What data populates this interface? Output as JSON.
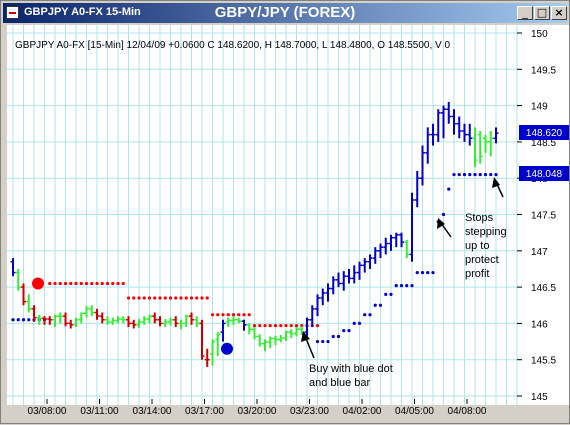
{
  "window": {
    "title": "GBPY/JPY (FOREX)",
    "subtitle": "GBPJPY A0-FX 15-Min",
    "minimize_icon": "minimize-icon",
    "maximize_icon": "maximize-icon",
    "close_icon": "close-icon"
  },
  "chart_data": {
    "type": "ohlc-bar",
    "header": "GBPJPY A0-FX [15-Min] 12/04/09 +0.0600 C 148.6200, H 148.7000, L 148.4800, O 148.5500, V 0",
    "ylim": [
      145,
      150
    ],
    "y_ticks": [
      "150",
      "149.5",
      "149",
      "148.5",
      "148",
      "147.5",
      "147",
      "146.5",
      "146",
      "145.5",
      "145"
    ],
    "y_tick_values": [
      150,
      149.5,
      149,
      148.5,
      148,
      147.5,
      147,
      146.5,
      146,
      145.5,
      145
    ],
    "x_ticks": [
      "03/08:00",
      "03/11:00",
      "03/14:00",
      "03/17:00",
      "03/20:00",
      "03/23:00",
      "04/02:00",
      "04/05:00",
      "04/08:00"
    ],
    "last_price_label": "148.620",
    "stop_label": "148.048",
    "grid": true,
    "colors": {
      "bull_bar": "#0000cc",
      "bear_bar": "#cc0000",
      "neutral_bar": "#33ee33",
      "stop_dots_short": "#ff0000",
      "stop_dots_long": "#0000cc",
      "grid": "#aee6ee",
      "label_bg": "#0000cc"
    },
    "series": [
      {
        "name": "bars",
        "open": [
          146.85,
          146.7,
          146.5,
          146.3,
          146.2,
          146.08,
          146.07,
          146.06,
          146.05,
          146.1,
          146.1,
          146.0,
          145.98,
          146.05,
          146.14,
          146.2,
          146.15,
          146.1,
          146.05,
          146.02,
          146.04,
          146.06,
          146.05,
          146.0,
          145.98,
          146.02,
          146.06,
          146.1,
          146.05,
          146.0,
          146.02,
          146.05,
          146.0,
          146.0,
          146.1,
          146.05,
          146.0,
          145.5,
          145.58,
          145.78,
          145.88,
          146.02,
          146.04,
          146.05,
          146.03,
          145.98,
          145.92,
          145.82,
          145.72,
          145.74,
          145.79,
          145.78,
          145.8,
          145.88,
          145.86,
          145.92,
          145.88,
          146.05,
          146.2,
          146.35,
          146.42,
          146.48,
          146.6,
          146.55,
          146.65,
          146.62,
          146.7,
          146.8,
          146.85,
          146.9,
          147.0,
          147.05,
          147.1,
          147.18,
          147.22,
          147.12,
          146.95,
          147.7,
          148.0,
          148.35,
          148.6,
          148.6,
          148.9,
          148.95,
          148.85,
          148.75,
          148.65,
          148.6,
          148.55,
          148.6,
          148.55,
          148.5,
          148.55
        ],
        "high": [
          146.9,
          146.75,
          146.55,
          146.4,
          146.25,
          146.12,
          146.1,
          146.1,
          146.12,
          146.15,
          146.15,
          146.05,
          146.08,
          146.15,
          146.24,
          146.25,
          146.2,
          146.15,
          146.1,
          146.08,
          146.1,
          146.1,
          146.1,
          146.05,
          146.06,
          146.1,
          146.12,
          146.15,
          146.1,
          146.06,
          146.08,
          146.1,
          146.05,
          146.12,
          146.15,
          146.1,
          146.05,
          145.65,
          145.78,
          145.88,
          146.05,
          146.08,
          146.1,
          146.08,
          146.05,
          146.0,
          145.95,
          145.85,
          145.78,
          145.82,
          145.83,
          145.84,
          145.9,
          145.92,
          145.95,
          145.96,
          146.08,
          146.25,
          146.4,
          146.48,
          146.55,
          146.65,
          146.7,
          146.72,
          146.75,
          146.8,
          146.85,
          146.9,
          146.95,
          147.05,
          147.1,
          147.18,
          147.22,
          147.25,
          147.25,
          147.15,
          147.8,
          148.1,
          148.45,
          148.7,
          148.75,
          148.95,
          149.0,
          149.05,
          148.95,
          148.85,
          148.75,
          148.75,
          148.7,
          148.65,
          148.6,
          148.65,
          148.7
        ],
        "low": [
          146.65,
          146.45,
          146.25,
          146.15,
          146.02,
          145.98,
          145.98,
          145.98,
          145.95,
          146.0,
          145.96,
          145.93,
          145.95,
          146.0,
          146.08,
          146.1,
          146.05,
          146.0,
          145.98,
          145.98,
          146.0,
          146.0,
          145.95,
          145.93,
          145.94,
          145.98,
          146.0,
          146.0,
          145.96,
          145.95,
          145.97,
          145.95,
          145.92,
          145.95,
          145.98,
          145.95,
          145.5,
          145.4,
          145.42,
          145.55,
          145.75,
          145.95,
          145.98,
          146.0,
          145.9,
          145.85,
          145.78,
          145.68,
          145.62,
          145.66,
          145.7,
          145.74,
          145.76,
          145.8,
          145.82,
          145.84,
          145.82,
          145.95,
          146.1,
          146.25,
          146.3,
          146.4,
          146.5,
          146.45,
          146.55,
          146.55,
          146.6,
          146.7,
          146.75,
          146.82,
          146.9,
          146.95,
          147.0,
          147.05,
          147.05,
          146.9,
          146.85,
          147.6,
          147.9,
          148.2,
          148.45,
          148.5,
          148.55,
          148.75,
          148.6,
          148.55,
          148.5,
          148.45,
          148.15,
          148.2,
          148.35,
          148.3,
          148.48
        ],
        "close": [
          146.7,
          146.5,
          146.3,
          146.2,
          146.08,
          146.07,
          146.06,
          146.05,
          146.1,
          146.1,
          146.0,
          145.98,
          146.05,
          146.14,
          146.2,
          146.15,
          146.1,
          146.05,
          146.02,
          146.04,
          146.06,
          146.05,
          146.0,
          145.98,
          146.02,
          146.06,
          146.1,
          146.05,
          146.0,
          146.02,
          146.05,
          146.0,
          146.0,
          146.1,
          146.05,
          146.0,
          145.55,
          145.5,
          145.75,
          145.85,
          146.0,
          146.04,
          146.05,
          146.03,
          145.98,
          145.92,
          145.82,
          145.72,
          145.74,
          145.79,
          145.78,
          145.8,
          145.88,
          145.86,
          145.92,
          145.88,
          146.05,
          146.2,
          146.35,
          146.42,
          146.48,
          146.6,
          146.55,
          146.65,
          146.62,
          146.7,
          146.8,
          146.85,
          146.9,
          147.0,
          147.05,
          147.1,
          147.18,
          147.22,
          147.12,
          146.95,
          147.7,
          148.0,
          148.35,
          148.6,
          148.6,
          148.9,
          148.95,
          148.85,
          148.75,
          148.65,
          148.6,
          148.55,
          148.25,
          148.3,
          148.5,
          148.55,
          148.62
        ],
        "color": [
          "B",
          "G",
          "R",
          "G",
          "R",
          "G",
          "R",
          "R",
          "G",
          "G",
          "R",
          "R",
          "G",
          "G",
          "G",
          "G",
          "R",
          "R",
          "G",
          "G",
          "G",
          "G",
          "R",
          "R",
          "G",
          "G",
          "G",
          "R",
          "R",
          "G",
          "G",
          "R",
          "G",
          "G",
          "R",
          "G",
          "R",
          "R",
          "G",
          "G",
          "B",
          "G",
          "G",
          "G",
          "B",
          "G",
          "G",
          "G",
          "G",
          "G",
          "G",
          "G",
          "G",
          "G",
          "G",
          "G",
          "B",
          "B",
          "B",
          "B",
          "B",
          "B",
          "B",
          "B",
          "B",
          "B",
          "B",
          "B",
          "B",
          "B",
          "B",
          "B",
          "B",
          "B",
          "B",
          "G",
          "B",
          "B",
          "B",
          "B",
          "B",
          "B",
          "B",
          "B",
          "B",
          "B",
          "B",
          "B",
          "G",
          "G",
          "G",
          "G",
          "B"
        ]
      },
      {
        "name": "short-stops",
        "points": [
          [
            7,
            146.55
          ],
          [
            8,
            146.55
          ],
          [
            9,
            146.55
          ],
          [
            10,
            146.55
          ],
          [
            11,
            146.55
          ],
          [
            12,
            146.55
          ],
          [
            13,
            146.55
          ],
          [
            14,
            146.55
          ],
          [
            15,
            146.55
          ],
          [
            16,
            146.55
          ],
          [
            17,
            146.55
          ],
          [
            18,
            146.55
          ],
          [
            19,
            146.55
          ],
          [
            20,
            146.55
          ],
          [
            21,
            146.55
          ],
          [
            22,
            146.35
          ],
          [
            23,
            146.35
          ],
          [
            24,
            146.35
          ],
          [
            25,
            146.35
          ],
          [
            26,
            146.35
          ],
          [
            27,
            146.35
          ],
          [
            28,
            146.35
          ],
          [
            29,
            146.35
          ],
          [
            30,
            146.35
          ],
          [
            31,
            146.35
          ],
          [
            32,
            146.35
          ],
          [
            33,
            146.35
          ],
          [
            34,
            146.35
          ],
          [
            35,
            146.35
          ],
          [
            36,
            146.35
          ],
          [
            37,
            146.35
          ],
          [
            38,
            146.12
          ],
          [
            39,
            146.12
          ],
          [
            40,
            146.12
          ],
          [
            41,
            146.12
          ],
          [
            42,
            146.12
          ],
          [
            43,
            146.12
          ],
          [
            44,
            146.12
          ],
          [
            45,
            146.12
          ],
          [
            46,
            145.97
          ],
          [
            47,
            145.97
          ],
          [
            48,
            145.97
          ],
          [
            49,
            145.97
          ],
          [
            50,
            145.97
          ],
          [
            51,
            145.97
          ],
          [
            52,
            145.97
          ],
          [
            53,
            145.97
          ],
          [
            54,
            145.97
          ],
          [
            55,
            145.97
          ],
          [
            56,
            145.97
          ],
          [
            57,
            145.97
          ],
          [
            58,
            145.97
          ]
        ]
      },
      {
        "name": "long-stops",
        "points": [
          [
            0,
            146.05
          ],
          [
            1,
            146.05
          ],
          [
            2,
            146.05
          ],
          [
            3,
            146.05
          ],
          [
            4,
            146.05
          ],
          [
            5,
            146.05
          ],
          [
            6,
            146.05
          ],
          [
            58,
            145.75
          ],
          [
            59,
            145.75
          ],
          [
            60,
            145.75
          ],
          [
            61,
            145.82
          ],
          [
            62,
            145.82
          ],
          [
            63,
            145.9
          ],
          [
            64,
            145.9
          ],
          [
            65,
            146.0
          ],
          [
            66,
            146.0
          ],
          [
            67,
            146.12
          ],
          [
            68,
            146.12
          ],
          [
            69,
            146.25
          ],
          [
            70,
            146.25
          ],
          [
            71,
            146.4
          ],
          [
            72,
            146.4
          ],
          [
            73,
            146.52
          ],
          [
            74,
            146.52
          ],
          [
            75,
            146.52
          ],
          [
            76,
            146.52
          ],
          [
            77,
            146.7
          ],
          [
            78,
            146.7
          ],
          [
            79,
            146.7
          ],
          [
            80,
            146.7
          ],
          [
            81,
            147.4
          ],
          [
            82,
            147.5
          ],
          [
            83,
            147.85
          ],
          [
            84,
            148.05
          ],
          [
            85,
            148.05
          ],
          [
            86,
            148.05
          ],
          [
            87,
            148.05
          ],
          [
            88,
            148.05
          ],
          [
            89,
            148.05
          ],
          [
            90,
            148.05
          ],
          [
            91,
            148.05
          ],
          [
            92,
            148.05
          ]
        ]
      }
    ],
    "big_dots": [
      {
        "index": 4,
        "value": 146.55,
        "color": "#ff0000"
      },
      {
        "index": 40,
        "value": 145.65,
        "color": "#0000cc"
      }
    ],
    "annotations": [
      {
        "id": "buy",
        "lines": [
          "Buy with blue dot",
          "and blue bar"
        ]
      },
      {
        "id": "stops",
        "lines": [
          "Stops",
          "stepping",
          "up to",
          "protect",
          "profit"
        ]
      }
    ]
  }
}
